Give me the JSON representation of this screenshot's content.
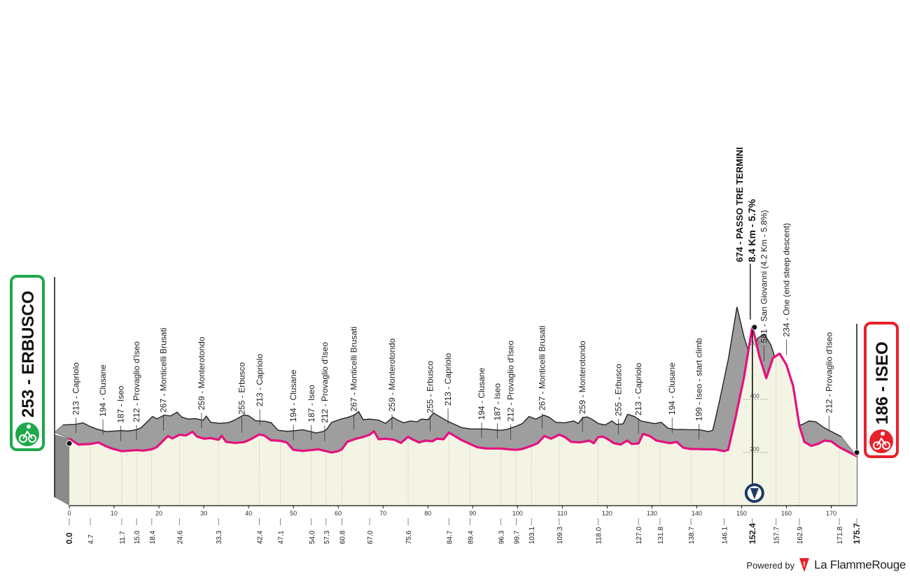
{
  "chart_data": {
    "type": "area",
    "xlabel": "",
    "ylabel": "",
    "xlim": [
      0,
      175.7
    ],
    "ylim": [
      0,
      700
    ],
    "x_ticks": [
      0,
      10,
      20,
      30,
      40,
      50,
      60,
      70,
      80,
      90,
      100,
      110,
      120,
      130,
      140,
      150,
      160,
      170
    ],
    "y_ticks": [
      200,
      400,
      600
    ],
    "start": {
      "label": "253 - ERBUSCO",
      "color": "#1fa84a"
    },
    "finish": {
      "label": "186 - ISEO",
      "color": "#e8212b"
    },
    "profile_color": "#e4117f",
    "profile": [
      [
        0,
        253
      ],
      [
        2,
        230
      ],
      [
        4.7,
        232
      ],
      [
        6.5,
        238
      ],
      [
        8,
        225
      ],
      [
        9.5,
        215
      ],
      [
        11.7,
        205
      ],
      [
        13.5,
        207
      ],
      [
        15,
        209
      ],
      [
        16.5,
        207
      ],
      [
        18.4,
        212
      ],
      [
        19.5,
        220
      ],
      [
        21,
        245
      ],
      [
        22,
        262
      ],
      [
        23,
        253
      ],
      [
        24.6,
        267
      ],
      [
        26,
        264
      ],
      [
        27.5,
        278
      ],
      [
        28.5,
        260
      ],
      [
        30,
        252
      ],
      [
        31.5,
        254
      ],
      [
        33.3,
        248
      ],
      [
        34,
        263
      ],
      [
        35,
        240
      ],
      [
        37,
        236
      ],
      [
        39,
        239
      ],
      [
        40.5,
        250
      ],
      [
        42.4,
        268
      ],
      [
        43.5,
        264
      ],
      [
        45,
        246
      ],
      [
        47.1,
        244
      ],
      [
        48.5,
        238
      ],
      [
        50,
        210
      ],
      [
        52,
        206
      ],
      [
        54,
        209
      ],
      [
        55.5,
        212
      ],
      [
        57.3,
        205
      ],
      [
        58.5,
        200
      ],
      [
        60,
        205
      ],
      [
        60.8,
        212
      ],
      [
        62,
        240
      ],
      [
        64,
        252
      ],
      [
        65.5,
        258
      ],
      [
        67,
        267
      ],
      [
        68,
        280
      ],
      [
        69,
        250
      ],
      [
        70.5,
        252
      ],
      [
        72.5,
        248
      ],
      [
        74,
        236
      ],
      [
        75.6,
        259
      ],
      [
        76.5,
        250
      ],
      [
        78,
        238
      ],
      [
        79.5,
        245
      ],
      [
        81,
        242
      ],
      [
        82,
        252
      ],
      [
        83.5,
        250
      ],
      [
        84.7,
        275
      ],
      [
        86,
        262
      ],
      [
        87.5,
        247
      ],
      [
        89.4,
        232
      ],
      [
        91,
        220
      ],
      [
        93,
        215
      ],
      [
        96.3,
        215
      ],
      [
        98,
        212
      ],
      [
        99.7,
        210
      ],
      [
        101,
        213
      ],
      [
        103.1,
        225
      ],
      [
        104.5,
        235
      ],
      [
        106,
        262
      ],
      [
        107.5,
        252
      ],
      [
        109.3,
        267
      ],
      [
        110.5,
        259
      ],
      [
        112,
        240
      ],
      [
        114,
        238
      ],
      [
        116,
        245
      ],
      [
        117,
        235
      ],
      [
        118,
        258
      ],
      [
        119,
        260
      ],
      [
        120,
        252
      ],
      [
        121.5,
        235
      ],
      [
        123,
        230
      ],
      [
        124.5,
        245
      ],
      [
        125.5,
        232
      ],
      [
        127,
        234
      ],
      [
        128,
        270
      ],
      [
        129.5,
        262
      ],
      [
        131,
        245
      ],
      [
        132.5,
        240
      ],
      [
        134,
        235
      ],
      [
        135.5,
        240
      ],
      [
        137,
        218
      ],
      [
        138.7,
        213
      ],
      [
        140,
        213
      ],
      [
        142,
        212
      ],
      [
        144,
        212
      ],
      [
        146.1,
        205
      ],
      [
        147,
        210
      ],
      [
        148.5,
        320
      ],
      [
        150.5,
        480
      ],
      [
        152.4,
        674
      ],
      [
        154,
        560
      ],
      [
        155.5,
        480
      ],
      [
        157,
        556
      ],
      [
        158.5,
        572
      ],
      [
        160,
        530
      ],
      [
        161.5,
        450
      ],
      [
        162.9,
        300
      ],
      [
        164,
        240
      ],
      [
        165.5,
        225
      ],
      [
        167,
        232
      ],
      [
        168.5,
        245
      ],
      [
        170,
        242
      ],
      [
        171.8,
        220
      ],
      [
        173.5,
        205
      ],
      [
        175.7,
        186
      ]
    ],
    "distance_labels": [
      "0.0",
      "4.7",
      "11.7",
      "15.0",
      "18.4",
      "24.6",
      "33.3",
      "42.4",
      "47.1",
      "54.0",
      "57.3",
      "60.8",
      "67.0",
      "75.6",
      "84.7",
      "89.4",
      "96.3",
      "99.7",
      "103.1",
      "109.3",
      "118.0",
      "127.0",
      "131.8",
      "138.7",
      "146.1",
      "152.4",
      "157.7",
      "162.9",
      "171.8",
      "175.7"
    ],
    "places": [
      {
        "km": 1.5,
        "label": "213 - Capriolo"
      },
      {
        "km": 7.5,
        "label": "194 - Clusane"
      },
      {
        "km": 11.5,
        "label": "187 - Iseo"
      },
      {
        "km": 15.0,
        "label": "212 - Provaglio d'Iseo"
      },
      {
        "km": 21.0,
        "label": "267 - Monticelli Brusati"
      },
      {
        "km": 29.5,
        "label": "259 - Monterotondo"
      },
      {
        "km": 38.5,
        "label": "255 - Erbusco"
      },
      {
        "km": 42.5,
        "label": "213 - Capriolo"
      },
      {
        "km": 50.0,
        "label": "194 - Clusane"
      },
      {
        "km": 54.0,
        "label": "187 - Iseo"
      },
      {
        "km": 57.0,
        "label": "212 - Provaglio d'Iseo"
      },
      {
        "km": 63.5,
        "label": "267 - Monticelli Brusati"
      },
      {
        "km": 72.0,
        "label": "259 - Monterotondo"
      },
      {
        "km": 80.5,
        "label": "255 - Erbusco"
      },
      {
        "km": 84.5,
        "label": "213 - Capriolo"
      },
      {
        "km": 92.0,
        "label": "194 - Clusane"
      },
      {
        "km": 95.5,
        "label": "187 - Iseo"
      },
      {
        "km": 98.5,
        "label": "212 - Provaglio d'Iseo"
      },
      {
        "km": 105.5,
        "label": "267 - Monticelli Brusati"
      },
      {
        "km": 114.5,
        "label": "259 - Monterotondo"
      },
      {
        "km": 122.5,
        "label": "255 - Erbusco"
      },
      {
        "km": 127.0,
        "label": "213 - Capriolo"
      },
      {
        "km": 134.5,
        "label": "194 - Clusane"
      },
      {
        "km": 140.5,
        "label": "199 - Iseo - start climb"
      },
      {
        "km": 155.0,
        "label": "581 - San Giovanni (4.2 Km - 5.8%)"
      },
      {
        "km": 160.0,
        "label": "234 - One (end steep descent)"
      },
      {
        "km": 169.5,
        "label": "212 - Provaglio d'Iseo"
      }
    ],
    "summit": {
      "km": 152.4,
      "label": "674 - PASSO TRE TERMINI",
      "sublabel": "8.4 Km - 5.7%"
    }
  },
  "footer": {
    "powered_by": "Powered by",
    "brand": "La FlammeRouge"
  }
}
